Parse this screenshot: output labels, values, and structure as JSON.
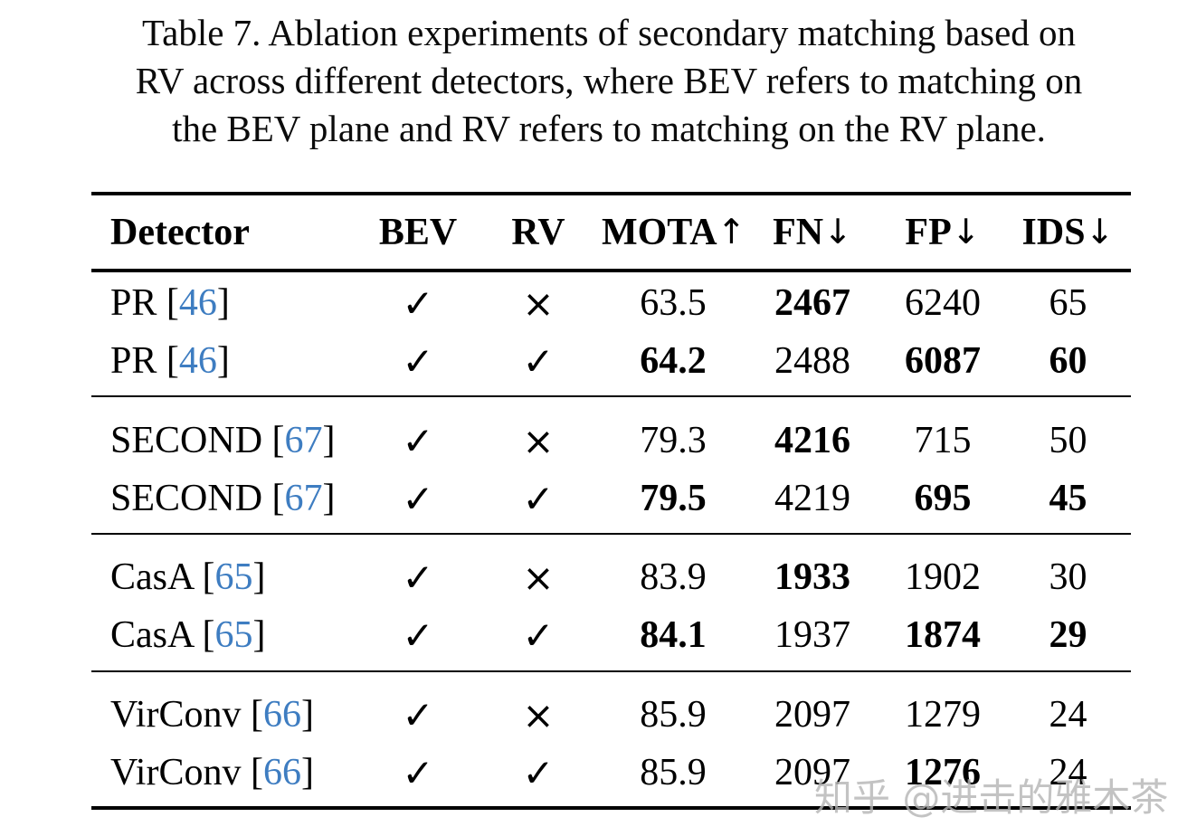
{
  "caption": {
    "lines": [
      "Table 7. Ablation experiments of secondary matching based on",
      "RV across different detectors, where BEV refers to matching on",
      "the BEV plane and RV refers to matching on the RV plane."
    ]
  },
  "table": {
    "headers": [
      {
        "text": "Detector",
        "arrow": ""
      },
      {
        "text": "BEV",
        "arrow": ""
      },
      {
        "text": "RV",
        "arrow": ""
      },
      {
        "text": "MOTA",
        "arrow": "↑"
      },
      {
        "text": "FN",
        "arrow": "↓"
      },
      {
        "text": "FP",
        "arrow": "↓"
      },
      {
        "text": "IDS",
        "arrow": "↓"
      }
    ],
    "check_mark": "✓",
    "cross_mark": "×",
    "groups": [
      {
        "rows": [
          {
            "detector": "PR",
            "ref": "46",
            "bev": "✓",
            "rv": "×",
            "mota": "63.5",
            "fn": "2467",
            "fp": "6240",
            "ids": "65",
            "bold": [
              "fn"
            ]
          },
          {
            "detector": "PR",
            "ref": "46",
            "bev": "✓",
            "rv": "✓",
            "mota": "64.2",
            "fn": "2488",
            "fp": "6087",
            "ids": "60",
            "bold": [
              "mota",
              "fp",
              "ids"
            ]
          }
        ]
      },
      {
        "rows": [
          {
            "detector": "SECOND",
            "ref": "67",
            "bev": "✓",
            "rv": "×",
            "mota": "79.3",
            "fn": "4216",
            "fp": "715",
            "ids": "50",
            "bold": [
              "fn"
            ]
          },
          {
            "detector": "SECOND",
            "ref": "67",
            "bev": "✓",
            "rv": "✓",
            "mota": "79.5",
            "fn": "4219",
            "fp": "695",
            "ids": "45",
            "bold": [
              "mota",
              "fp",
              "ids"
            ]
          }
        ]
      },
      {
        "rows": [
          {
            "detector": "CasA",
            "ref": "65",
            "bev": "✓",
            "rv": "×",
            "mota": "83.9",
            "fn": "1933",
            "fp": "1902",
            "ids": "30",
            "bold": [
              "fn"
            ]
          },
          {
            "detector": "CasA",
            "ref": "65",
            "bev": "✓",
            "rv": "✓",
            "mota": "84.1",
            "fn": "1937",
            "fp": "1874",
            "ids": "29",
            "bold": [
              "mota",
              "fp",
              "ids"
            ]
          }
        ]
      },
      {
        "rows": [
          {
            "detector": "VirConv",
            "ref": "66",
            "bev": "✓",
            "rv": "×",
            "mota": "85.9",
            "fn": "2097",
            "fp": "1279",
            "ids": "24",
            "bold": []
          },
          {
            "detector": "VirConv",
            "ref": "66",
            "bev": "✓",
            "rv": "✓",
            "mota": "85.9",
            "fn": "2097",
            "fp": "1276",
            "ids": "24",
            "bold": [
              "fp"
            ]
          }
        ]
      }
    ]
  },
  "watermark": {
    "text": "知乎 @进击的雅木茶"
  },
  "colors": {
    "text": "#000000",
    "reference_blue": "#3e7dc1",
    "watermark_gray": "#b5b5b5"
  }
}
